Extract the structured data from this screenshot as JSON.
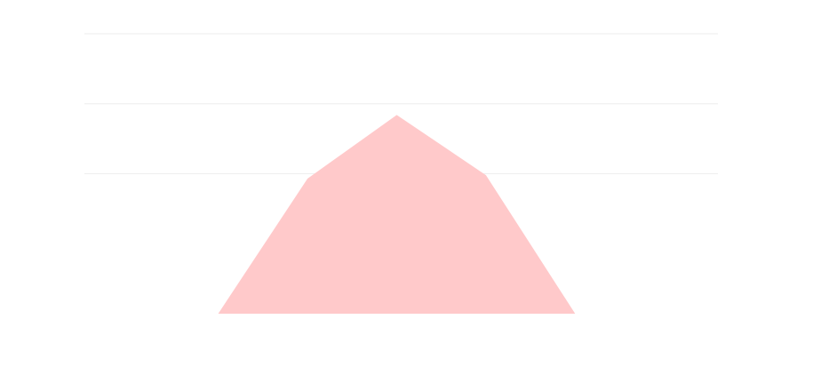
{
  "chart_data": {
    "type": "area",
    "title": "",
    "xlabel": "",
    "ylabel": "",
    "x": [
      0,
      1,
      2,
      3,
      4,
      5
    ],
    "series": [
      {
        "values": [
          0,
          0,
          1.93,
          2.84,
          1.98,
          0
        ]
      }
    ],
    "xlim": [
      -0.5,
      6.6
    ],
    "ylim": [
      -0.99,
      4.0
    ],
    "y_gridlines": [
      2.0,
      3.0,
      4.0
    ],
    "grid": true,
    "legend": "none",
    "colors": {
      "area_fill": "#ffc9ca",
      "gridline": "#eeeeee",
      "background": "#ffffff"
    }
  }
}
